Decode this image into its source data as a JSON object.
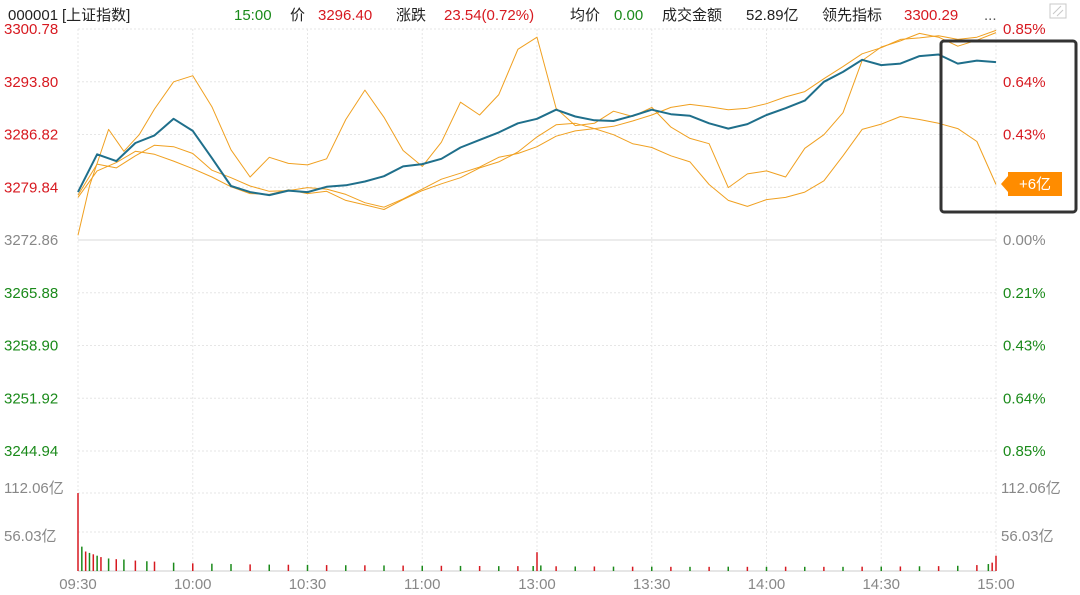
{
  "header": {
    "code": "000001",
    "name": "[上证指数]",
    "time": "15:00",
    "price_label": "价",
    "price": "3296.40",
    "change_label": "涨跌",
    "change": "23.54(0.72%)",
    "avg_label": "均价",
    "avg": "0.00",
    "turnover_label": "成交金额",
    "turnover": "52.89亿",
    "lead_label": "领先指标",
    "lead": "3300.29",
    "more": "...",
    "settings_icon": "settings-icon"
  },
  "colors": {
    "up": "#d71920",
    "down": "#1a8a1a",
    "index_line": "#1f6f8b",
    "lead_line": "#f0a020",
    "flow_line": "#f0a020",
    "grid": "#e6e6e6",
    "badge_bg": "#ff8c00",
    "highlight_box": "#333333"
  },
  "badge": {
    "text": "+6亿"
  },
  "chart_data": {
    "type": "line",
    "title": "",
    "x_ticks": [
      "09:30",
      "10:00",
      "10:30",
      "11:00",
      "13:00",
      "13:30",
      "14:00",
      "14:30",
      "15:00"
    ],
    "y_left_ticks": [
      "3300.78",
      "3293.80",
      "3286.82",
      "3279.84",
      "3272.86",
      "3265.88",
      "3258.90",
      "3251.92",
      "3244.94"
    ],
    "y_right_ticks": [
      "0.85%",
      "0.64%",
      "0.43%",
      "",
      "0.00%",
      "0.21%",
      "0.43%",
      "0.64%",
      "0.85%"
    ],
    "ylim": [
      3244.94,
      3300.78
    ],
    "x_index_range": [
      0,
      240
    ],
    "volume_ticks": [
      "112.06亿",
      "56.03亿"
    ],
    "volume_right_ticks": [
      "112.06亿",
      "56.03亿"
    ],
    "volume_max": 112.06,
    "series": [
      {
        "key": "index",
        "x": [
          0,
          5,
          10,
          15,
          20,
          25,
          30,
          35,
          40,
          45,
          50,
          55,
          60,
          65,
          70,
          75,
          80,
          85,
          90,
          95,
          100,
          105,
          110,
          115,
          120,
          125,
          130,
          135,
          140,
          145,
          150,
          155,
          160,
          165,
          170,
          175,
          180,
          185,
          190,
          195,
          200,
          205,
          210,
          215,
          220,
          225,
          230,
          235,
          240
        ],
        "values": [
          3279.2,
          3284.2,
          3283.3,
          3285.7,
          3286.7,
          3288.9,
          3287.3,
          3283.7,
          3280.0,
          3279.2,
          3278.8,
          3279.4,
          3279.2,
          3279.9,
          3280.1,
          3280.6,
          3281.3,
          3282.6,
          3282.9,
          3283.6,
          3285.1,
          3286.1,
          3287.1,
          3288.3,
          3288.9,
          3290.1,
          3289.2,
          3288.7,
          3288.6,
          3289.3,
          3290.1,
          3289.5,
          3289.3,
          3288.3,
          3287.6,
          3288.2,
          3289.4,
          3290.3,
          3291.3,
          3293.8,
          3295.1,
          3296.7,
          3296.0,
          3296.2,
          3297.2,
          3297.4,
          3296.2,
          3296.6,
          3296.4
        ]
      },
      {
        "key": "lead",
        "x": [
          0,
          3,
          8,
          12,
          16,
          20,
          25,
          30,
          35,
          40,
          45,
          50,
          55,
          60,
          65,
          70,
          75,
          80,
          85,
          90,
          95,
          100,
          105,
          110,
          115,
          120,
          125,
          130,
          135,
          140,
          145,
          150,
          155,
          160,
          165,
          170,
          175,
          180,
          185,
          190,
          195,
          200,
          205,
          210,
          215,
          220,
          225,
          230,
          235,
          240
        ],
        "values": [
          3273.5,
          3280.0,
          3287.5,
          3284.6,
          3286.8,
          3290.2,
          3293.8,
          3294.6,
          3290.5,
          3284.8,
          3281.2,
          3283.8,
          3283.0,
          3282.8,
          3283.6,
          3288.8,
          3292.7,
          3289.1,
          3284.7,
          3282.6,
          3285.8,
          3291.1,
          3289.4,
          3292.1,
          3298.1,
          3299.7,
          3290.3,
          3288.0,
          3288.3,
          3289.9,
          3289.2,
          3290.4,
          3287.8,
          3286.3,
          3285.6,
          3279.8,
          3281.6,
          3282.0,
          3281.2,
          3285.0,
          3286.8,
          3289.7,
          3296.6,
          3298.4,
          3299.2,
          3300.2,
          3299.7,
          3298.5,
          3299.3,
          3300.3
        ]
      },
      {
        "key": "flow",
        "x": [
          0,
          5,
          10,
          15,
          20,
          25,
          30,
          35,
          40,
          45,
          50,
          55,
          60,
          65,
          70,
          75,
          80,
          85,
          90,
          95,
          100,
          105,
          110,
          115,
          120,
          125,
          130,
          135,
          140,
          145,
          150,
          155,
          160,
          165,
          170,
          175,
          180,
          185,
          190,
          195,
          200,
          205,
          210,
          215,
          220,
          225,
          230,
          235,
          240
        ],
        "values": [
          3278.8,
          3282.9,
          3282.4,
          3284.0,
          3285.4,
          3285.2,
          3284.3,
          3282.1,
          3281.1,
          3280.0,
          3279.3,
          3279.4,
          3279.8,
          3279.6,
          3278.9,
          3277.8,
          3277.2,
          3278.3,
          3279.6,
          3280.9,
          3281.7,
          3282.5,
          3283.8,
          3284.3,
          3285.2,
          3286.6,
          3287.3,
          3287.6,
          3287.9,
          3288.6,
          3289.4,
          3290.4,
          3290.8,
          3290.5,
          3290.1,
          3290.3,
          3290.9,
          3291.8,
          3292.5,
          3294.2,
          3295.8,
          3297.5,
          3298.3,
          3299.4,
          3299.6,
          3299.9,
          3299.4,
          3299.7,
          3300.6
        ]
      },
      {
        "key": "fund",
        "x": [
          0,
          5,
          10,
          15,
          20,
          25,
          30,
          35,
          40,
          45,
          50,
          55,
          60,
          65,
          70,
          75,
          80,
          85,
          90,
          95,
          100,
          105,
          110,
          115,
          120,
          125,
          130,
          135,
          140,
          145,
          150,
          155,
          160,
          165,
          170,
          175,
          180,
          185,
          190,
          195,
          200,
          205,
          210,
          215,
          220,
          225,
          230,
          235,
          240
        ],
        "values": [
          3278.5,
          3282.0,
          3283.1,
          3284.6,
          3284.2,
          3283.3,
          3282.3,
          3281.2,
          3279.9,
          3279.0,
          3278.9,
          3279.5,
          3279.0,
          3279.3,
          3278.1,
          3277.5,
          3276.9,
          3278.2,
          3279.4,
          3280.3,
          3281.1,
          3282.4,
          3283.2,
          3284.5,
          3286.5,
          3288.1,
          3288.3,
          3287.6,
          3286.8,
          3285.6,
          3285.1,
          3284.0,
          3283.2,
          3280.2,
          3278.1,
          3277.3,
          3278.2,
          3278.5,
          3279.2,
          3280.7,
          3284.0,
          3287.5,
          3288.2,
          3289.2,
          3288.8,
          3288.3,
          3287.6,
          3285.9,
          3280.2
        ]
      }
    ],
    "volume": {
      "x": [
        0,
        1,
        2,
        3,
        4,
        5,
        6,
        8,
        10,
        12,
        15,
        18,
        20,
        25,
        30,
        35,
        40,
        45,
        50,
        55,
        60,
        65,
        70,
        75,
        80,
        85,
        90,
        95,
        100,
        105,
        110,
        115,
        119,
        120,
        121,
        125,
        130,
        135,
        140,
        145,
        150,
        155,
        160,
        165,
        170,
        175,
        180,
        185,
        190,
        195,
        200,
        205,
        210,
        215,
        220,
        225,
        230,
        235,
        238,
        239,
        240
      ],
      "values": [
        112.0,
        35.0,
        28.0,
        26.0,
        24.0,
        22.0,
        20.0,
        18.0,
        17.0,
        16.5,
        15.0,
        14.0,
        13.5,
        12.0,
        11.0,
        10.5,
        10.0,
        9.5,
        9.2,
        9.0,
        8.8,
        8.5,
        8.3,
        8.2,
        8.0,
        7.8,
        7.5,
        7.5,
        7.3,
        7.2,
        7.0,
        7.0,
        7.2,
        27.0,
        8.0,
        6.8,
        6.5,
        6.5,
        6.3,
        6.2,
        6.2,
        6.0,
        6.0,
        6.0,
        6.2,
        6.0,
        6.0,
        6.2,
        6.0,
        6.0,
        6.0,
        6.2,
        6.3,
        6.5,
        6.8,
        7.0,
        7.5,
        8.5,
        10.0,
        12.0,
        22.0
      ],
      "up_flags": [
        1,
        0,
        1,
        0,
        1,
        0,
        1,
        0,
        1,
        0,
        1,
        0,
        1,
        0,
        1,
        0,
        0,
        1,
        0,
        1,
        0,
        1,
        0,
        1,
        0,
        1,
        0,
        1,
        0,
        1,
        0,
        1,
        0,
        1,
        0,
        1,
        0,
        1,
        0,
        1,
        0,
        1,
        0,
        1,
        0,
        1,
        0,
        1,
        0,
        1,
        0,
        1,
        0,
        1,
        0,
        1,
        0,
        1,
        0,
        1,
        1
      ]
    }
  }
}
